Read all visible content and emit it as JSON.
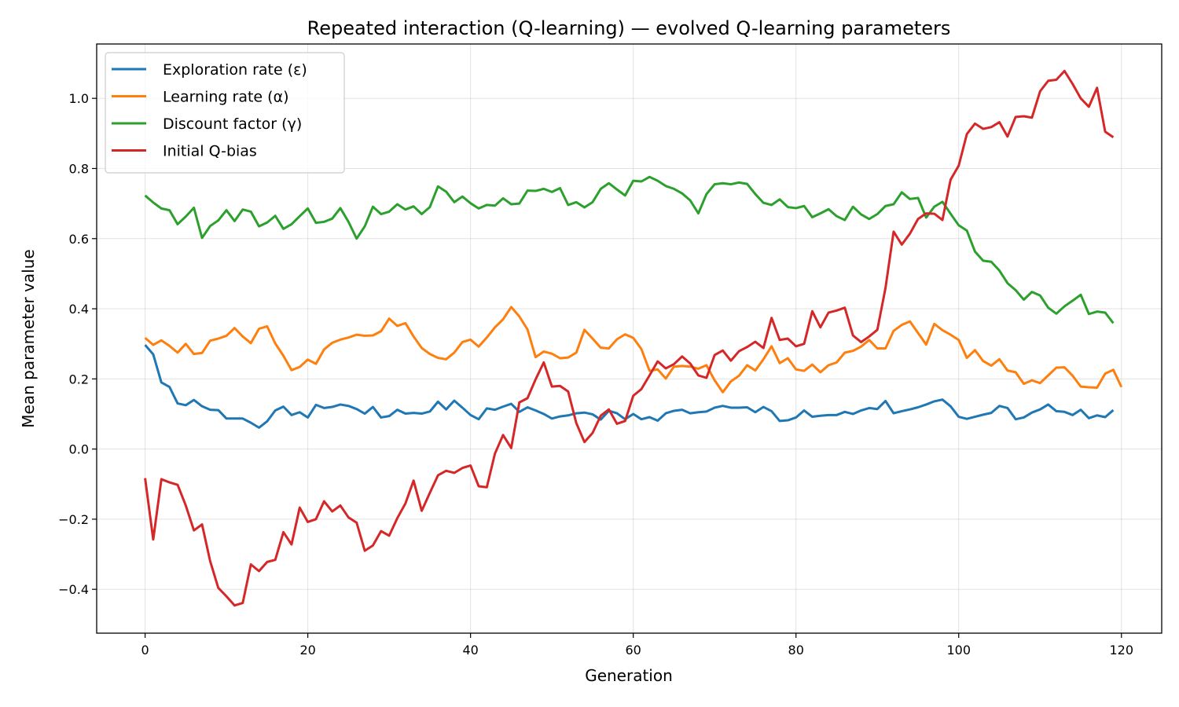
{
  "chart_data": {
    "type": "line",
    "title": "Repeated interaction (Q-learning) — evolved Q-learning parameters",
    "xlabel": "Generation",
    "ylabel": "Mean parameter value",
    "xlim": [
      -5.95,
      124.95
    ],
    "ylim": [
      -0.525,
      1.155
    ],
    "xticks": [
      0,
      20,
      40,
      60,
      80,
      100,
      120
    ],
    "xtick_labels": [
      "0",
      "20",
      "40",
      "60",
      "80",
      "100",
      "120"
    ],
    "yticks": [
      -0.4,
      -0.2,
      0.0,
      0.2,
      0.4,
      0.6,
      0.8,
      1.0
    ],
    "ytick_labels": [
      "−0.4",
      "−0.2",
      "0.0",
      "0.2",
      "0.4",
      "0.6",
      "0.8",
      "1.0"
    ],
    "grid": true,
    "legend_position": "top-left",
    "series": [
      {
        "name": "Exploration rate (ε)",
        "color": "#1f77b4",
        "x_start": 0,
        "values": [
          0.297,
          0.27,
          0.19,
          0.177,
          0.13,
          0.125,
          0.14,
          0.122,
          0.112,
          0.111,
          0.087,
          0.087,
          0.087,
          0.075,
          0.061,
          0.079,
          0.11,
          0.121,
          0.097,
          0.105,
          0.09,
          0.126,
          0.117,
          0.12,
          0.127,
          0.123,
          0.114,
          0.101,
          0.12,
          0.09,
          0.094,
          0.112,
          0.101,
          0.103,
          0.101,
          0.107,
          0.135,
          0.113,
          0.138,
          0.118,
          0.097,
          0.085,
          0.116,
          0.112,
          0.121,
          0.129,
          0.106,
          0.119,
          0.11,
          0.1,
          0.087,
          0.093,
          0.096,
          0.102,
          0.104,
          0.099,
          0.084,
          0.109,
          0.102,
          0.085,
          0.1,
          0.085,
          0.091,
          0.081,
          0.102,
          0.109,
          0.112,
          0.102,
          0.105,
          0.107,
          0.118,
          0.123,
          0.118,
          0.118,
          0.119,
          0.105,
          0.12,
          0.108,
          0.08,
          0.082,
          0.09,
          0.11,
          0.092,
          0.095,
          0.097,
          0.097,
          0.106,
          0.1,
          0.11,
          0.117,
          0.114,
          0.137,
          0.102,
          0.108,
          0.113,
          0.119,
          0.127,
          0.136,
          0.141,
          0.122,
          0.092,
          0.086,
          0.092,
          0.098,
          0.103,
          0.123,
          0.117,
          0.085,
          0.09,
          0.104,
          0.113,
          0.127,
          0.108,
          0.106,
          0.097,
          0.112,
          0.088,
          0.096,
          0.091,
          0.111
        ]
      },
      {
        "name": "Learning rate (α)",
        "color": "#ff7f0e",
        "x_start": 0,
        "values": [
          0.317,
          0.297,
          0.31,
          0.294,
          0.275,
          0.3,
          0.271,
          0.274,
          0.309,
          0.315,
          0.323,
          0.345,
          0.321,
          0.302,
          0.343,
          0.35,
          0.301,
          0.266,
          0.225,
          0.234,
          0.255,
          0.243,
          0.284,
          0.303,
          0.312,
          0.318,
          0.326,
          0.323,
          0.324,
          0.336,
          0.372,
          0.351,
          0.359,
          0.321,
          0.288,
          0.271,
          0.26,
          0.256,
          0.275,
          0.305,
          0.312,
          0.292,
          0.318,
          0.347,
          0.37,
          0.405,
          0.378,
          0.341,
          0.262,
          0.278,
          0.272,
          0.259,
          0.261,
          0.275,
          0.34,
          0.315,
          0.289,
          0.287,
          0.313,
          0.327,
          0.317,
          0.285,
          0.223,
          0.227,
          0.201,
          0.235,
          0.237,
          0.235,
          0.229,
          0.239,
          0.196,
          0.162,
          0.193,
          0.209,
          0.239,
          0.224,
          0.256,
          0.293,
          0.245,
          0.259,
          0.227,
          0.223,
          0.241,
          0.219,
          0.239,
          0.247,
          0.275,
          0.28,
          0.292,
          0.311,
          0.287,
          0.287,
          0.337,
          0.354,
          0.364,
          0.331,
          0.298,
          0.357,
          0.339,
          0.326,
          0.311,
          0.26,
          0.282,
          0.251,
          0.238,
          0.256,
          0.224,
          0.219,
          0.186,
          0.196,
          0.188,
          0.21,
          0.232,
          0.233,
          0.209,
          0.178,
          0.176,
          0.175,
          0.215,
          0.226,
          0.177
        ]
      },
      {
        "name": "Discount factor (γ)",
        "color": "#2ca02c",
        "x_start": 0,
        "values": [
          0.723,
          0.703,
          0.686,
          0.681,
          0.641,
          0.663,
          0.688,
          0.602,
          0.636,
          0.652,
          0.681,
          0.65,
          0.683,
          0.677,
          0.635,
          0.646,
          0.665,
          0.628,
          0.641,
          0.664,
          0.686,
          0.645,
          0.648,
          0.657,
          0.687,
          0.648,
          0.6,
          0.635,
          0.691,
          0.67,
          0.677,
          0.698,
          0.683,
          0.692,
          0.67,
          0.69,
          0.749,
          0.734,
          0.704,
          0.72,
          0.701,
          0.686,
          0.696,
          0.694,
          0.715,
          0.698,
          0.7,
          0.737,
          0.736,
          0.742,
          0.733,
          0.744,
          0.696,
          0.704,
          0.689,
          0.704,
          0.742,
          0.758,
          0.74,
          0.723,
          0.765,
          0.763,
          0.776,
          0.765,
          0.75,
          0.742,
          0.729,
          0.709,
          0.672,
          0.727,
          0.755,
          0.758,
          0.755,
          0.76,
          0.756,
          0.727,
          0.702,
          0.696,
          0.712,
          0.69,
          0.687,
          0.693,
          0.661,
          0.672,
          0.684,
          0.664,
          0.653,
          0.691,
          0.669,
          0.656,
          0.67,
          0.693,
          0.698,
          0.732,
          0.713,
          0.716,
          0.66,
          0.691,
          0.705,
          0.671,
          0.638,
          0.623,
          0.563,
          0.537,
          0.534,
          0.509,
          0.473,
          0.453,
          0.426,
          0.448,
          0.438,
          0.403,
          0.386,
          0.407,
          0.423,
          0.44,
          0.385,
          0.392,
          0.389,
          0.359
        ]
      },
      {
        "name": "Initial Q-bias",
        "color": "#d62728",
        "x_start": 0,
        "values": [
          -0.083,
          -0.258,
          -0.086,
          -0.095,
          -0.102,
          -0.161,
          -0.232,
          -0.215,
          -0.32,
          -0.396,
          -0.42,
          -0.446,
          -0.439,
          -0.329,
          -0.348,
          -0.322,
          -0.316,
          -0.237,
          -0.272,
          -0.167,
          -0.208,
          -0.2,
          -0.149,
          -0.178,
          -0.161,
          -0.195,
          -0.21,
          -0.29,
          -0.275,
          -0.234,
          -0.247,
          -0.197,
          -0.155,
          -0.09,
          -0.176,
          -0.125,
          -0.075,
          -0.062,
          -0.068,
          -0.054,
          -0.047,
          -0.106,
          -0.109,
          -0.013,
          0.04,
          0.003,
          0.133,
          0.145,
          0.199,
          0.247,
          0.178,
          0.18,
          0.164,
          0.074,
          0.02,
          0.046,
          0.095,
          0.113,
          0.072,
          0.08,
          0.152,
          0.171,
          0.21,
          0.25,
          0.23,
          0.242,
          0.264,
          0.244,
          0.21,
          0.203,
          0.268,
          0.281,
          0.252,
          0.279,
          0.291,
          0.306,
          0.288,
          0.374,
          0.311,
          0.315,
          0.293,
          0.3,
          0.393,
          0.347,
          0.389,
          0.395,
          0.403,
          0.324,
          0.305,
          0.321,
          0.34,
          0.459,
          0.62,
          0.583,
          0.614,
          0.656,
          0.672,
          0.671,
          0.653,
          0.768,
          0.808,
          0.898,
          0.928,
          0.913,
          0.918,
          0.932,
          0.891,
          0.947,
          0.949,
          0.945,
          1.02,
          1.05,
          1.053,
          1.078,
          1.041,
          1.0,
          0.976,
          1.03,
          0.905,
          0.889
        ]
      }
    ]
  }
}
